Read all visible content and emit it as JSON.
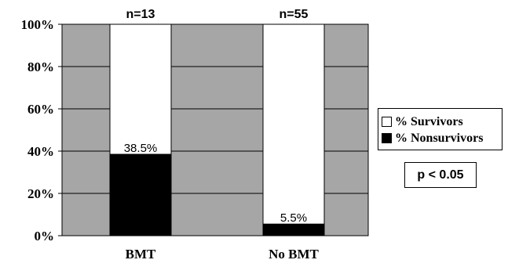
{
  "chart_data": {
    "type": "bar",
    "stacked": true,
    "categories": [
      "BMT",
      "No BMT"
    ],
    "series": [
      {
        "name": "% Survivors",
        "values": [
          61.5,
          94.5
        ],
        "color": "#ffffff"
      },
      {
        "name": "% Nonsurvivors",
        "values": [
          38.5,
          5.5
        ],
        "color": "#000000"
      }
    ],
    "sample_sizes": [
      "n=13",
      "n=55"
    ],
    "data_labels": [
      "38.5%",
      "5.5%"
    ],
    "ylim": [
      0,
      100
    ],
    "yticks": [
      "0%",
      "20%",
      "40%",
      "60%",
      "80%",
      "100%"
    ],
    "plot_background": "#a6a6a6",
    "grid": true,
    "legend_position": "right",
    "annotation": "p < 0.05"
  }
}
